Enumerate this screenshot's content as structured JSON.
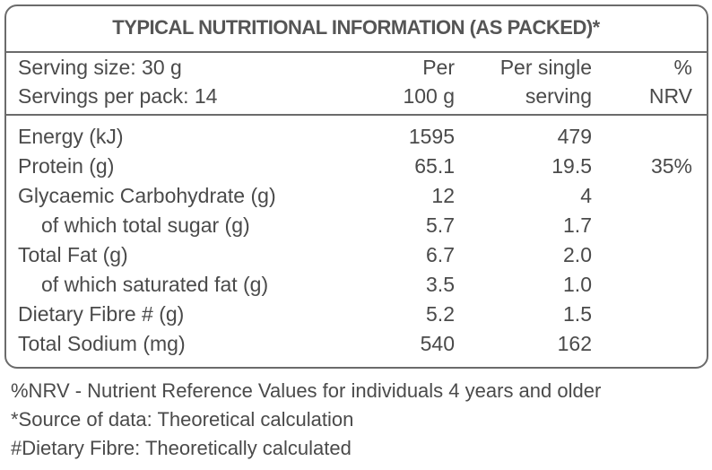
{
  "title": "TYPICAL NUTRITIONAL INFORMATION (AS PACKED)*",
  "header": [
    [
      "Serving size: 30 g",
      "Per",
      "Per single",
      "%"
    ],
    [
      "Servings per pack: 14",
      "100 g",
      "serving",
      "NRV"
    ]
  ],
  "rows": [
    {
      "label": "Energy (kJ)",
      "values": [
        "1595",
        "479"
      ]
    },
    {
      "label": "Protein (g)",
      "values": [
        "65.1",
        "19.5",
        "35%"
      ]
    },
    {
      "label": "Glycaemic Carbohydrate (g)",
      "values": [
        "12",
        "4"
      ],
      "sub": [
        {
          "label": "of which total sugar (g)",
          "values": [
            "5.7",
            "1.7"
          ]
        }
      ]
    },
    {
      "label": "Total Fat (g)",
      "values": [
        "6.7",
        "2.0"
      ],
      "sub": [
        {
          "label": "of which saturated fat (g)",
          "values": [
            "3.5",
            "1.0"
          ]
        }
      ]
    },
    {
      "label": "Dietary Fibre # (g)",
      "values": [
        "5.2",
        "1.5"
      ]
    },
    {
      "label": "Total Sodium (mg)",
      "values": [
        "540",
        "162"
      ]
    }
  ],
  "footnotes": [
    "%NRV - Nutrient Reference Values for individuals 4 years and older",
    "*Source of data: Theoretical calculation",
    "#Dietary Fibre: Theoretically calculated"
  ]
}
